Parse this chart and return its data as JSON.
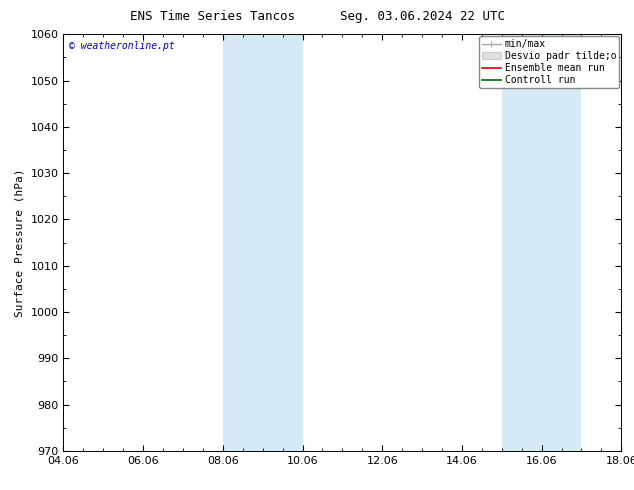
{
  "title": "ENS Time Series Tancos      Seg. 03.06.2024 22 UTC",
  "ylabel": "Surface Pressure (hPa)",
  "ylim": [
    970,
    1060
  ],
  "yticks": [
    970,
    980,
    990,
    1000,
    1010,
    1020,
    1030,
    1040,
    1050,
    1060
  ],
  "xlim_start": 0,
  "xlim_end": 14,
  "xtick_labels": [
    "04.06",
    "06.06",
    "08.06",
    "10.06",
    "12.06",
    "14.06",
    "16.06",
    "18.06"
  ],
  "xtick_positions": [
    0,
    2,
    4,
    6,
    8,
    10,
    12,
    14
  ],
  "shade_bands": [
    {
      "xmin": 4.0,
      "xmax": 4.95,
      "color": "#d6eaf5"
    },
    {
      "xmin": 4.95,
      "xmax": 6.0,
      "color": "#d6eaf5"
    },
    {
      "xmin": 11.0,
      "xmax": 11.95,
      "color": "#d6eaf5"
    },
    {
      "xmin": 11.95,
      "xmax": 13.0,
      "color": "#d6eaf5"
    }
  ],
  "watermark": "© weatheronline.pt",
  "legend_minmax_color": "#aaaaaa",
  "legend_desvio_color": "#cccccc",
  "legend_ensemble_color": "#dd0000",
  "legend_control_color": "#006600",
  "bg_color": "#ffffff",
  "title_fontsize": 9,
  "ylabel_fontsize": 8,
  "tick_fontsize": 8,
  "watermark_fontsize": 7,
  "legend_fontsize": 7
}
